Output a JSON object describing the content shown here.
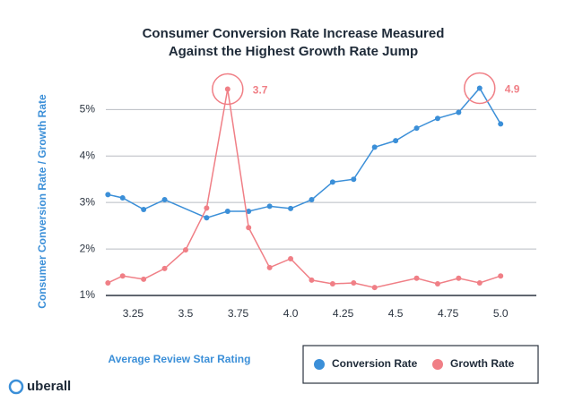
{
  "chart_data": {
    "type": "line",
    "title_lines": [
      "Consumer Conversion Rate Increase Measured",
      "Against the Highest Growth Rate Jump"
    ],
    "x_label": "Average Review Star Rating",
    "y_label": "Consumer Conversion Rate / Growth Rate",
    "xlim": [
      3.12,
      5.17
    ],
    "ylim": [
      1,
      5.7
    ],
    "xticks": [
      3.25,
      3.5,
      3.75,
      {
        "value": 4,
        "label": "4.0"
      },
      4.25,
      4.5,
      4.75,
      {
        "value": 5,
        "label": "5.0"
      }
    ],
    "yticks": [
      {
        "value": 1,
        "label": "1%"
      },
      {
        "value": 2,
        "label": "2%"
      },
      {
        "value": 3,
        "label": "3%"
      },
      {
        "value": 4,
        "label": "4%"
      },
      {
        "value": 5,
        "label": "5%"
      }
    ],
    "grid": true,
    "series": [
      {
        "name": "Conversion Rate",
        "color": "#3b8fd8",
        "x": [
          3.13,
          3.2,
          3.3,
          3.4,
          3.6,
          3.7,
          3.8,
          3.9,
          4.0,
          4.1,
          4.2,
          4.3,
          4.4,
          4.5,
          4.6,
          4.7,
          4.8,
          4.9,
          5.0
        ],
        "values": [
          3.17,
          3.1,
          2.85,
          3.06,
          2.67,
          2.81,
          2.81,
          2.92,
          2.87,
          3.06,
          3.44,
          3.5,
          4.19,
          4.33,
          4.6,
          4.81,
          4.94,
          5.46,
          4.69
        ]
      },
      {
        "name": "Growth Rate",
        "color": "#f07f86",
        "x": [
          3.13,
          3.2,
          3.3,
          3.4,
          3.5,
          3.6,
          3.7,
          3.8,
          3.9,
          4.0,
          4.1,
          4.2,
          4.3,
          4.4,
          4.6,
          4.7,
          4.8,
          4.9,
          5.0
        ],
        "values": [
          1.27,
          1.42,
          1.35,
          1.58,
          1.98,
          2.88,
          5.44,
          2.46,
          1.6,
          1.79,
          1.33,
          1.25,
          1.27,
          1.17,
          1.37,
          1.25,
          1.37,
          1.27,
          1.42
        ]
      }
    ],
    "annotations": [
      "4.9",
      "3.7"
    ],
    "logo": "uberall"
  }
}
